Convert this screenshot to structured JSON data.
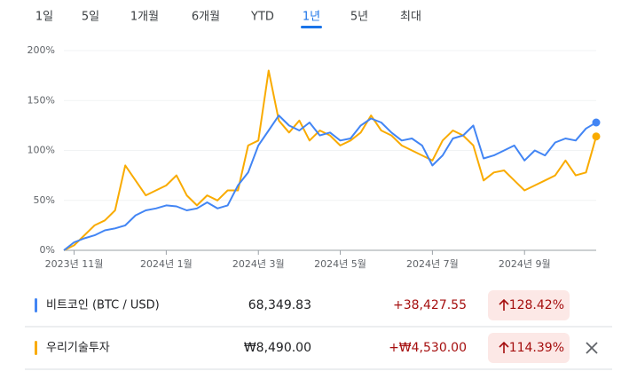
{
  "tabs": [
    "1일",
    "5일",
    "1개월",
    "6개월",
    "YTD",
    "1년",
    "5년",
    "최대"
  ],
  "active_tab": 5,
  "chart_data": {
    "type": "line",
    "categories": [
      null,
      "2023년 11월",
      null,
      null,
      null,
      null,
      null,
      null,
      null,
      null,
      "2024년 1월",
      null,
      null,
      null,
      null,
      null,
      null,
      null,
      null,
      "2024년 3월",
      null,
      null,
      null,
      null,
      null,
      null,
      null,
      "2024년 5월",
      null,
      null,
      null,
      null,
      null,
      null,
      null,
      null,
      "2024년 7월",
      null,
      null,
      null,
      null,
      null,
      null,
      null,
      null,
      "2024년 9월",
      null,
      null,
      null,
      null,
      null,
      null,
      null
    ],
    "series": [
      {
        "name": "비트코인 (BTC / USD)",
        "color": "#4285f4",
        "values": [
          0,
          8,
          12,
          15,
          20,
          22,
          25,
          35,
          40,
          42,
          45,
          44,
          40,
          42,
          48,
          42,
          45,
          65,
          78,
          105,
          120,
          135,
          125,
          120,
          128,
          115,
          118,
          110,
          112,
          125,
          132,
          128,
          118,
          110,
          112,
          105,
          85,
          95,
          112,
          115,
          125,
          92,
          95,
          100,
          105,
          90,
          100,
          95,
          108,
          112,
          110,
          122,
          128
        ]
      },
      {
        "name": "우리기술투자",
        "color": "#f9ab00",
        "values": [
          0,
          5,
          15,
          25,
          30,
          40,
          85,
          70,
          55,
          60,
          65,
          75,
          55,
          45,
          55,
          50,
          60,
          60,
          105,
          110,
          180,
          130,
          118,
          130,
          110,
          120,
          115,
          105,
          110,
          118,
          135,
          120,
          115,
          105,
          100,
          95,
          90,
          110,
          120,
          115,
          105,
          70,
          78,
          80,
          70,
          60,
          65,
          70,
          75,
          90,
          75,
          78,
          114
        ]
      }
    ],
    "ylim": [
      0,
      200
    ],
    "yticks": [
      {
        "value": 0,
        "label": "0%"
      },
      {
        "value": 50,
        "label": "50%"
      },
      {
        "value": 100,
        "label": "100%"
      },
      {
        "value": 150,
        "label": "150%"
      },
      {
        "value": 200,
        "label": "200%"
      }
    ],
    "grid": true
  },
  "comparison": {
    "rows": [
      {
        "price": "68,349.83",
        "change": "+38,427.55",
        "change_percent": "128.42%"
      },
      {
        "price": "₩8,490.00",
        "change": "+₩4,530.00",
        "change_percent": "114.39%"
      }
    ]
  }
}
